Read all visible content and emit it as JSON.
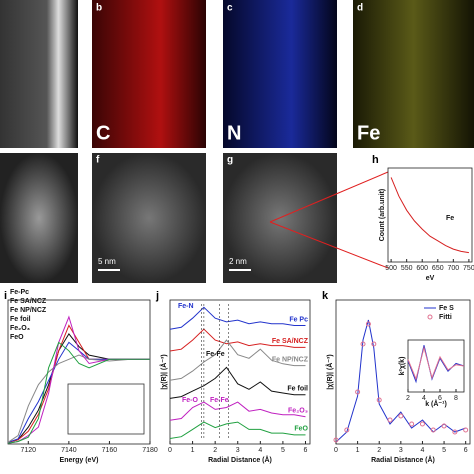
{
  "images": {
    "b": {
      "letter": "b",
      "element": "C"
    },
    "c": {
      "letter": "c",
      "element": "N"
    },
    "d": {
      "letter": "d",
      "element": "Fe"
    },
    "f": {
      "letter": "f",
      "scale": "5 nm"
    },
    "g": {
      "letter": "g",
      "scale": "2 nm"
    }
  },
  "chart_data": [
    {
      "type": "line",
      "letter": "h",
      "xlabel": "eV",
      "ylabel": "Count (arb.unit)",
      "annotation": "Fe",
      "x": [
        500,
        525,
        550,
        575,
        600,
        625,
        650,
        675,
        700,
        725,
        750
      ],
      "series": [
        {
          "color": "#d62020",
          "values": [
            9.2,
            7.6,
            6.4,
            5.5,
            4.8,
            4.2,
            3.8,
            3.4,
            3.1,
            2.9,
            2.8
          ]
        }
      ],
      "xlim": [
        490,
        760
      ],
      "ylim": [
        2,
        10
      ],
      "xticks": [
        500,
        550,
        600,
        650,
        700,
        750
      ],
      "legend": "none"
    },
    {
      "type": "line",
      "letter": "i",
      "xlabel": "Energy (eV)",
      "x": [
        7110,
        7115,
        7120,
        7125,
        7130,
        7135,
        7140,
        7145,
        7150,
        7160,
        7170,
        7180
      ],
      "series": [
        {
          "name": "Fe-Pc",
          "color": "#111111",
          "values": [
            0.02,
            0.05,
            0.2,
            0.4,
            0.7,
            1.1,
            1.3,
            1.15,
            1.05,
            1.0,
            1.0,
            1.0
          ]
        },
        {
          "name": "Fe SA/NCZ",
          "color": "#d62020",
          "values": [
            0.02,
            0.05,
            0.15,
            0.35,
            0.65,
            1.1,
            1.4,
            1.2,
            1.0,
            1.0,
            1.0,
            1.0
          ]
        },
        {
          "name": "Fe NP/NCZ",
          "color": "#2233cc",
          "values": [
            0.02,
            0.06,
            0.3,
            0.5,
            0.75,
            1.0,
            1.2,
            1.1,
            1.0,
            1.0,
            1.0,
            1.0
          ]
        },
        {
          "name": "Fe foil",
          "color": "#888888",
          "values": [
            0.02,
            0.1,
            0.45,
            0.7,
            0.85,
            0.95,
            1.0,
            1.05,
            1.0,
            0.98,
            1.0,
            1.0
          ]
        },
        {
          "name": "Fe₂O₃",
          "color": "#c020c0",
          "values": [
            0.01,
            0.03,
            0.1,
            0.2,
            0.6,
            1.2,
            1.5,
            1.1,
            0.95,
            1.0,
            1.0,
            1.0
          ]
        },
        {
          "name": "FeO",
          "color": "#20a040",
          "values": [
            0.01,
            0.03,
            0.08,
            0.3,
            0.9,
            1.2,
            1.1,
            0.95,
            0.9,
            1.0,
            1.0,
            1.0
          ]
        }
      ],
      "xlim": [
        7110,
        7180
      ],
      "ylim": [
        0,
        1.7
      ],
      "xticks": [
        7120,
        7140,
        7160,
        7180
      ],
      "legend": "upper left"
    },
    {
      "type": "line",
      "letter": "j",
      "xlabel": "Radial Distance (Å)",
      "ylabel": "|χ(R)| (Å⁻³)",
      "annotations": [
        "Fe-N",
        "Fe-Fe",
        "Fe-O",
        "Fe-Fe"
      ],
      "x": [
        0,
        0.5,
        1,
        1.5,
        2,
        2.5,
        3,
        3.5,
        4,
        4.5,
        5,
        5.5,
        6
      ],
      "series": [
        {
          "name": "Fe Pc",
          "color": "#2233cc",
          "values": [
            6,
            6.1,
            6.6,
            7.2,
            6.6,
            6.4,
            6.5,
            6.3,
            6.4,
            6.3,
            6.3,
            6.2,
            6.2
          ]
        },
        {
          "name": "Fe SA/NCZ",
          "color": "#d62020",
          "values": [
            4.8,
            4.9,
            5.4,
            6.0,
            5.4,
            5.2,
            5.3,
            5.1,
            5.2,
            5.1,
            5.1,
            5.0,
            5.0
          ]
        },
        {
          "name": "Fe NP/NCZ",
          "color": "#888888",
          "values": [
            3.2,
            3.3,
            3.7,
            4.2,
            4.6,
            5.4,
            4.6,
            4.4,
            4.9,
            4.3,
            4.1,
            4.0,
            4.0
          ]
        },
        {
          "name": "Fe foil",
          "color": "#111111",
          "values": [
            2.2,
            2.3,
            2.6,
            2.9,
            3.3,
            3.9,
            3.0,
            2.7,
            3.1,
            2.6,
            2.5,
            2.4,
            2.4
          ]
        },
        {
          "name": "Fe₂O₃",
          "color": "#c020c0",
          "values": [
            1.0,
            1.1,
            1.7,
            2.0,
            1.6,
            1.7,
            2.0,
            1.5,
            1.6,
            1.4,
            1.3,
            1.3,
            1.2
          ]
        },
        {
          "name": "FeO",
          "color": "#20a040",
          "values": [
            0,
            0.1,
            0.5,
            0.9,
            0.6,
            0.8,
            0.9,
            0.5,
            0.5,
            0.3,
            0.3,
            0.2,
            0.2
          ]
        }
      ],
      "xlim": [
        0,
        6.2
      ],
      "ylim": [
        -0.3,
        7.6
      ],
      "xticks": [
        0,
        1,
        2,
        3,
        4,
        5,
        6
      ],
      "legend": "inline"
    },
    {
      "type": "line",
      "letter": "k",
      "xlabel": "Radial Distance (Å)",
      "ylabel": "|χ(R)| (Å⁻³)",
      "x": [
        0,
        0.5,
        1,
        1.25,
        1.5,
        1.75,
        2,
        2.5,
        3,
        3.5,
        4,
        4.5,
        5,
        5.5,
        6
      ],
      "series": [
        {
          "name": "Fe S",
          "color": "#2233cc",
          "values": [
            0.05,
            0.3,
            1.2,
            2.6,
            3.1,
            2.4,
            1.0,
            0.5,
            0.8,
            0.4,
            0.6,
            0.3,
            0.5,
            0.3,
            0.4
          ]
        },
        {
          "name": "Fitti",
          "color": "#e07090",
          "mode": "markers",
          "values": [
            0.1,
            0.35,
            1.3,
            2.5,
            3.0,
            2.5,
            1.1,
            0.6,
            0.7,
            0.5,
            0.5,
            0.35,
            0.45,
            0.3,
            0.35
          ]
        }
      ],
      "xlim": [
        0,
        6.2
      ],
      "ylim": [
        0,
        3.6
      ],
      "xticks": [
        0,
        1,
        2,
        3,
        4,
        5,
        6
      ],
      "legend": "upper right",
      "inset": {
        "xlabel": "k (Å⁻¹)",
        "ylabel": "k²χ(k)",
        "x": [
          2,
          3,
          4,
          5,
          6,
          7,
          8,
          9
        ],
        "series": [
          {
            "color": "#2233cc",
            "values": [
              0.2,
              -0.6,
              0.8,
              -0.5,
              0.3,
              -0.2,
              0.1,
              0
            ]
          },
          {
            "color": "#e07090",
            "values": [
              0.25,
              -0.5,
              0.7,
              -0.45,
              0.35,
              -0.15,
              0.05,
              0
            ]
          }
        ],
        "xlim": [
          2,
          9
        ],
        "ylim": [
          -1,
          1
        ],
        "xticks": [
          2,
          4,
          6,
          8
        ]
      }
    }
  ]
}
